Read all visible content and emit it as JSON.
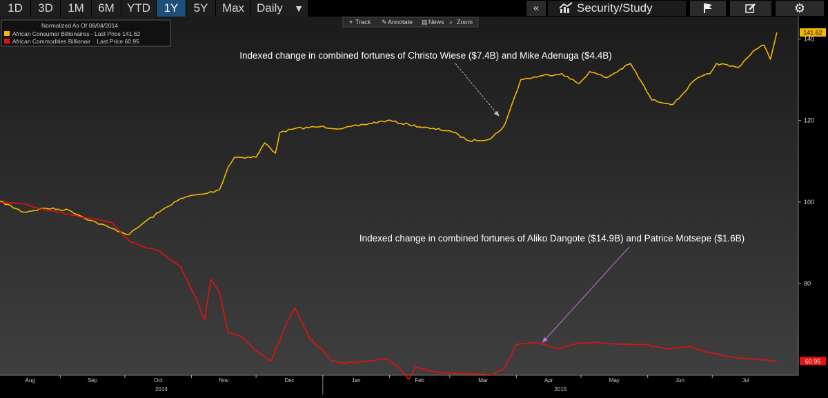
{
  "toolbar": {
    "ranges": [
      {
        "label": "1D",
        "active": false
      },
      {
        "label": "3D",
        "active": false
      },
      {
        "label": "1M",
        "active": false
      },
      {
        "label": "6M",
        "active": false
      },
      {
        "label": "YTD",
        "active": false
      },
      {
        "label": "1Y",
        "active": true
      },
      {
        "label": "5Y",
        "active": false
      },
      {
        "label": "Max",
        "active": false
      }
    ],
    "frequency": "Daily",
    "security_study": "Security/Study"
  },
  "chart_tools": [
    "Track",
    "Annotate",
    "News",
    "Zoom"
  ],
  "legend": {
    "normalized": "Normalized As Of 08/04/2014",
    "items": [
      {
        "text": "African Consumer Billionaires - Last Price 141.62",
        "color": "#f5b800"
      },
      {
        "text": "African Commodities Billionair    Last Price 60.95",
        "color": "#e81010"
      }
    ]
  },
  "chart_data": {
    "type": "line",
    "x_month_labels": [
      "Aug",
      "Sep",
      "Oct",
      "Nov",
      "Dec",
      "Jan",
      "Feb",
      "Mar",
      "Apr",
      "May",
      "Jun",
      "Jul"
    ],
    "year_labels": [
      "2014",
      "2015"
    ],
    "y_ticks": [
      80,
      100,
      120,
      140
    ],
    "ylim": [
      57.5,
      145.5
    ],
    "grid": false,
    "series": [
      {
        "name": "African Consumer Billionaires",
        "color": "#f5b800",
        "last_price_label": "141.62",
        "x": [
          "2014-08-04",
          "2014-08-15",
          "2014-08-25",
          "2014-09-05",
          "2014-09-15",
          "2014-09-25",
          "2014-10-03",
          "2014-10-10",
          "2014-10-17",
          "2014-10-24",
          "2014-10-31",
          "2014-11-07",
          "2014-11-14",
          "2014-11-18",
          "2014-11-21",
          "2014-12-01",
          "2014-12-05",
          "2014-12-10",
          "2014-12-12",
          "2014-12-19",
          "2014-12-31",
          "2015-01-10",
          "2015-01-20",
          "2015-01-31",
          "2015-02-10",
          "2015-02-20",
          "2015-03-01",
          "2015-03-10",
          "2015-03-20",
          "2015-03-26",
          "2015-03-27",
          "2015-04-03",
          "2015-04-13",
          "2015-04-22",
          "2015-04-30",
          "2015-05-05",
          "2015-05-13",
          "2015-05-24",
          "2015-06-03",
          "2015-06-13",
          "2015-06-23",
          "2015-06-30",
          "2015-07-03",
          "2015-07-13",
          "2015-07-20",
          "2015-07-25",
          "2015-07-28",
          "2015-07-31"
        ],
        "values": [
          100.2,
          97.5,
          98.5,
          98.0,
          95.5,
          93.5,
          92.0,
          95.0,
          97.5,
          100.0,
          101.5,
          102.0,
          103.0,
          108.5,
          111.0,
          111.0,
          114.5,
          112.0,
          117.0,
          118.0,
          118.5,
          118.0,
          119.0,
          120.0,
          119.0,
          118.0,
          117.5,
          115.0,
          115.5,
          118.5,
          119.5,
          130.0,
          131.0,
          131.5,
          129.0,
          132.0,
          130.5,
          134.0,
          125.0,
          124.0,
          130.0,
          131.5,
          134.0,
          133.0,
          137.0,
          138.5,
          135.0,
          141.6
        ]
      },
      {
        "name": "African Commodities Billionair",
        "color": "#e81010",
        "last_price_label": "60.95",
        "x": [
          "2014-08-04",
          "2014-08-15",
          "2014-08-25",
          "2014-09-05",
          "2014-09-15",
          "2014-09-25",
          "2014-10-03",
          "2014-10-10",
          "2014-10-17",
          "2014-10-27",
          "2014-11-03",
          "2014-11-07",
          "2014-11-10",
          "2014-11-14",
          "2014-11-18",
          "2014-11-24",
          "2014-12-01",
          "2014-12-08",
          "2014-12-15",
          "2014-12-19",
          "2014-12-26",
          "2015-01-01",
          "2015-01-05",
          "2015-01-12",
          "2015-01-21",
          "2015-01-31",
          "2015-02-06",
          "2015-02-10",
          "2015-02-13",
          "2015-02-20",
          "2015-03-01",
          "2015-03-10",
          "2015-03-20",
          "2015-03-26",
          "2015-04-01",
          "2015-04-10",
          "2015-04-20",
          "2015-04-30",
          "2015-05-10",
          "2015-05-20",
          "2015-05-31",
          "2015-06-10",
          "2015-06-20",
          "2015-06-30",
          "2015-07-10",
          "2015-07-20",
          "2015-07-31"
        ],
        "values": [
          100.0,
          99.5,
          98.0,
          97.0,
          96.0,
          95.0,
          90.5,
          89.0,
          88.0,
          84.0,
          76.5,
          71.0,
          81.0,
          78.0,
          68.0,
          67.0,
          63.5,
          61.0,
          70.0,
          74.0,
          66.5,
          63.5,
          61.0,
          60.5,
          61.0,
          61.5,
          59.0,
          56.5,
          59.5,
          58.5,
          58.0,
          58.0,
          57.5,
          59.0,
          65.0,
          65.5,
          64.0,
          65.5,
          65.5,
          65.0,
          65.0,
          64.0,
          64.5,
          63.0,
          62.0,
          61.5,
          61.0
        ]
      }
    ],
    "annotations": [
      {
        "text": "Indexed change in combined fortunes of Christo Wiese ($7.4B) and Mike Adenuga ($4.4B)",
        "target_series": 0,
        "target_x": "2015-03-24",
        "target_y": 121.0
      },
      {
        "text": "Indexed change in combined fortunes of Aliko Dangote ($14.9B) and Patrice Motsepe ($1.6B)",
        "target_series": 1,
        "target_x": "2015-04-13",
        "target_y": 65.5
      }
    ],
    "xlim": [
      "2014-08-04",
      "2015-08-10"
    ]
  }
}
